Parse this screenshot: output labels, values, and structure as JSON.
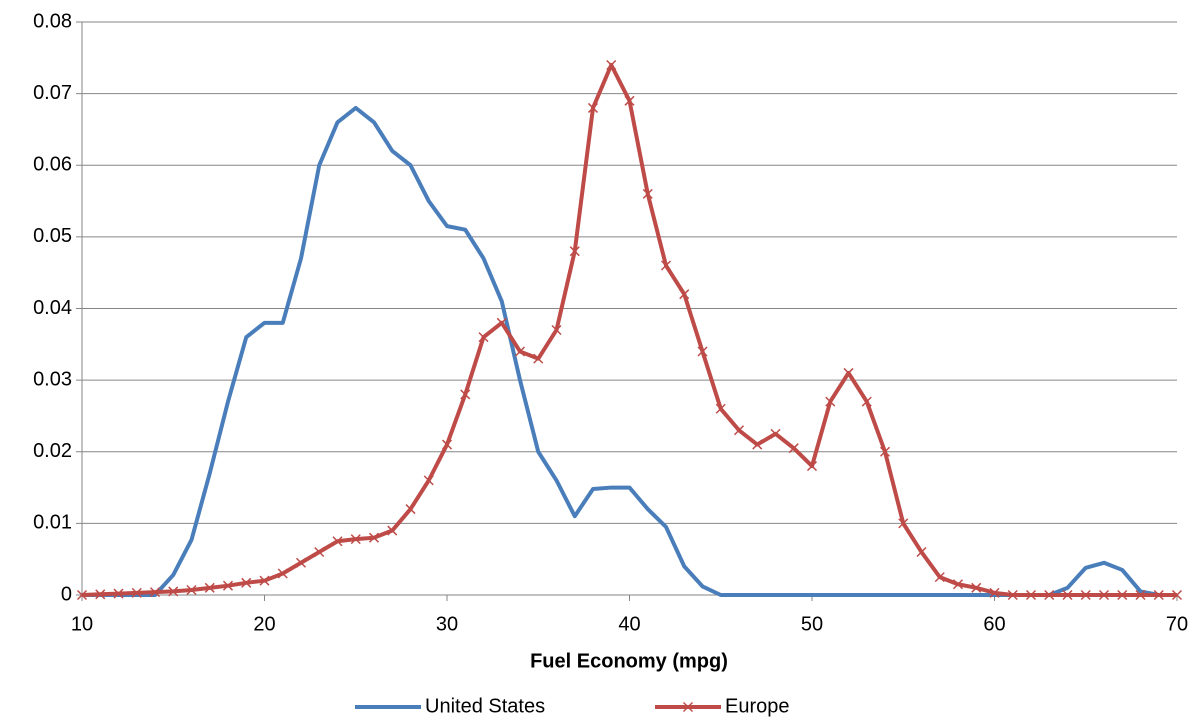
{
  "chart_data": {
    "type": "line",
    "xlabel": "Fuel Economy (mpg)",
    "x": [
      10,
      11,
      12,
      13,
      14,
      15,
      16,
      17,
      18,
      19,
      20,
      21,
      22,
      23,
      24,
      25,
      26,
      27,
      28,
      29,
      30,
      31,
      32,
      33,
      34,
      35,
      36,
      37,
      38,
      39,
      40,
      41,
      42,
      43,
      44,
      45,
      46,
      47,
      48,
      49,
      50,
      51,
      52,
      53,
      54,
      55,
      56,
      57,
      58,
      59,
      60,
      61,
      62,
      63,
      64,
      65,
      66,
      67,
      68,
      69,
      70
    ],
    "series": [
      {
        "name": "United States",
        "color": "#4a7ebb",
        "marker": "none",
        "values": [
          0,
          0,
          0,
          0,
          0,
          0.0028,
          0.0077,
          0.017,
          0.027,
          0.036,
          0.038,
          0.038,
          0.047,
          0.06,
          0.066,
          0.068,
          0.066,
          0.062,
          0.06,
          0.055,
          0.0515,
          0.051,
          0.047,
          0.041,
          0.03,
          0.02,
          0.016,
          0.011,
          0.0148,
          0.015,
          0.015,
          0.012,
          0.0095,
          0.004,
          0.0012,
          0,
          0,
          0,
          0,
          0,
          0,
          0,
          0,
          0,
          0,
          0,
          0,
          0,
          0,
          0,
          0,
          0,
          0,
          0,
          0.001,
          0.0038,
          0.0045,
          0.0035,
          0.0005,
          0,
          0
        ]
      },
      {
        "name": "Europe",
        "color": "#be4b48",
        "marker": "x",
        "values": [
          0,
          0.0001,
          0.0002,
          0.0003,
          0.0004,
          0.0005,
          0.0007,
          0.001,
          0.0013,
          0.0017,
          0.002,
          0.003,
          0.0045,
          0.006,
          0.0075,
          0.0078,
          0.008,
          0.009,
          0.012,
          0.016,
          0.021,
          0.028,
          0.036,
          0.038,
          0.034,
          0.033,
          0.037,
          0.048,
          0.068,
          0.074,
          0.069,
          0.056,
          0.046,
          0.042,
          0.034,
          0.026,
          0.023,
          0.021,
          0.0225,
          0.0205,
          0.018,
          0.027,
          0.031,
          0.027,
          0.02,
          0.01,
          0.006,
          0.0025,
          0.0015,
          0.001,
          0.0003,
          0,
          0,
          0,
          0,
          0,
          0,
          0,
          0,
          0,
          0
        ]
      }
    ],
    "xlim": [
      10,
      70
    ],
    "xticks": [
      10,
      20,
      30,
      40,
      50,
      60,
      70
    ],
    "ylim": [
      0,
      0.08
    ],
    "yticks": [
      0,
      0.01,
      0.02,
      0.03,
      0.04,
      0.05,
      0.06,
      0.07,
      0.08
    ],
    "grid": true,
    "legend": "bottom"
  }
}
